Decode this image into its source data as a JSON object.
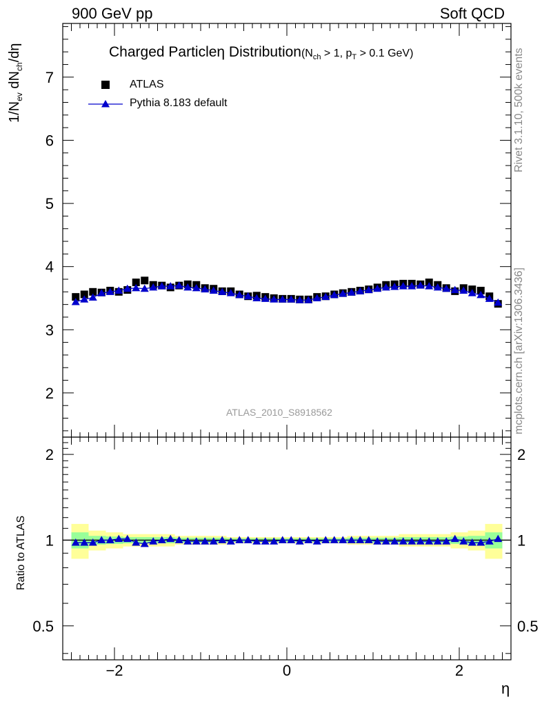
{
  "header": {
    "left": "900 GeV pp",
    "right": "Soft QCD"
  },
  "side_text": {
    "top": "Rivet 3.1.10,  500k events",
    "bottom": "mcplots.cern.ch [arXiv:1306.3436]"
  },
  "y_axis_label": {
    "prefix": "1/N",
    "ev_sub": "ev",
    "mid": " dN",
    "ch_sub": "ch",
    "suffix": "/dη"
  },
  "ratio_axis_label": "Ratio to ATLAS",
  "title": {
    "main": "Charged Particleη Distribution",
    "cut_open": "(N",
    "cut_ch": "ch",
    "cut_mid": " > 1, p",
    "cut_t": "T",
    "cut_close": " > 0.1 GeV)"
  },
  "legend": [
    {
      "label": "ATLAS"
    },
    {
      "label": "Pythia 8.183 default"
    }
  ],
  "watermark": "ATLAS_2010_S8918562",
  "x_axis_label": "η",
  "colors": {
    "data": "#000000",
    "mc": "#0000cc",
    "band_inner": "#99ff99",
    "band_outer": "#ffff99"
  },
  "chart_data": [
    {
      "type": "scatter",
      "panel": "main",
      "xlim": [
        -2.6,
        2.6
      ],
      "ylim": [
        1.3,
        7.85
      ],
      "yticks": [
        2,
        3,
        4,
        5,
        6,
        7
      ],
      "x": [
        -2.45,
        -2.35,
        -2.25,
        -2.15,
        -2.05,
        -1.95,
        -1.85,
        -1.75,
        -1.65,
        -1.55,
        -1.45,
        -1.35,
        -1.25,
        -1.15,
        -1.05,
        -0.95,
        -0.85,
        -0.75,
        -0.65,
        -0.55,
        -0.45,
        -0.35,
        -0.25,
        -0.15,
        -0.05,
        0.05,
        0.15,
        0.25,
        0.35,
        0.45,
        0.55,
        0.65,
        0.75,
        0.85,
        0.95,
        1.05,
        1.15,
        1.25,
        1.35,
        1.45,
        1.55,
        1.65,
        1.75,
        1.85,
        1.95,
        2.05,
        2.15,
        2.25,
        2.35,
        2.45
      ],
      "series": [
        {
          "name": "ATLAS",
          "marker": "square",
          "values": [
            3.52,
            3.56,
            3.6,
            3.59,
            3.62,
            3.6,
            3.63,
            3.75,
            3.78,
            3.71,
            3.7,
            3.67,
            3.7,
            3.72,
            3.71,
            3.66,
            3.65,
            3.61,
            3.61,
            3.56,
            3.53,
            3.54,
            3.52,
            3.5,
            3.49,
            3.49,
            3.48,
            3.48,
            3.52,
            3.53,
            3.56,
            3.58,
            3.6,
            3.62,
            3.64,
            3.67,
            3.71,
            3.72,
            3.73,
            3.73,
            3.72,
            3.75,
            3.71,
            3.66,
            3.61,
            3.66,
            3.64,
            3.62,
            3.53,
            3.41
          ]
        },
        {
          "name": "Pythia 8.183 default",
          "marker": "triangle",
          "values": [
            3.44,
            3.48,
            3.51,
            3.58,
            3.6,
            3.62,
            3.65,
            3.66,
            3.65,
            3.67,
            3.69,
            3.69,
            3.7,
            3.67,
            3.66,
            3.64,
            3.62,
            3.6,
            3.58,
            3.55,
            3.53,
            3.5,
            3.49,
            3.48,
            3.48,
            3.48,
            3.47,
            3.47,
            3.5,
            3.52,
            3.55,
            3.57,
            3.59,
            3.61,
            3.63,
            3.65,
            3.67,
            3.68,
            3.69,
            3.69,
            3.7,
            3.69,
            3.67,
            3.65,
            3.63,
            3.62,
            3.58,
            3.55,
            3.49,
            3.43
          ]
        }
      ]
    },
    {
      "type": "scatter",
      "panel": "ratio",
      "xlim": [
        -2.6,
        2.6
      ],
      "ylim": [
        0.38,
        2.3
      ],
      "yticks": [
        0.5,
        1,
        2
      ],
      "xticks": [
        -2,
        0,
        2
      ],
      "ylabel": "Ratio to ATLAS",
      "xlabel": "η",
      "band_edges": [
        -2.5,
        -2.3,
        -2.1,
        -1.9,
        -1.3,
        -0.7,
        0.7,
        1.3,
        1.9,
        2.1,
        2.3,
        2.5
      ],
      "band_inner": [
        0.065,
        0.035,
        0.03,
        0.025,
        0.02,
        0.015,
        0.02,
        0.025,
        0.03,
        0.035,
        0.065
      ],
      "band_outer": [
        0.14,
        0.08,
        0.065,
        0.05,
        0.035,
        0.025,
        0.035,
        0.05,
        0.065,
        0.08,
        0.14
      ],
      "series": [
        {
          "name": "Pythia 8.183 default",
          "marker": "triangle",
          "values": [
            0.98,
            0.98,
            0.98,
            1.0,
            1.0,
            1.01,
            1.01,
            0.98,
            0.97,
            0.99,
            1.0,
            1.01,
            1.0,
            0.99,
            0.99,
            0.99,
            0.99,
            1.0,
            0.99,
            1.0,
            1.0,
            0.99,
            0.99,
            0.99,
            1.0,
            1.0,
            0.99,
            1.0,
            0.99,
            1.0,
            1.0,
            1.0,
            1.0,
            1.0,
            1.0,
            0.99,
            0.99,
            0.99,
            0.99,
            0.99,
            0.99,
            0.99,
            0.99,
            0.99,
            1.01,
            0.99,
            0.98,
            0.98,
            0.99,
            1.01
          ]
        }
      ]
    }
  ]
}
